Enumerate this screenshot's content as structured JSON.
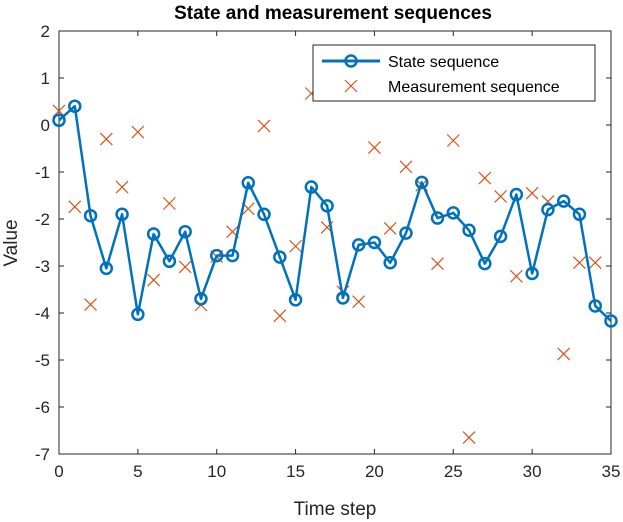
{
  "chart_data": {
    "type": "line",
    "title": "State and measurement sequences",
    "xlabel": "Time step",
    "ylabel": "Value",
    "xlim": [
      0,
      35
    ],
    "ylim": [
      -7,
      2
    ],
    "xticks": [
      "0",
      "5",
      "10",
      "15",
      "20",
      "25",
      "30",
      "35"
    ],
    "yticks": [
      "2",
      "1",
      "0",
      "-1",
      "-2",
      "-3",
      "-4",
      "-5",
      "-6",
      "-7"
    ],
    "grid": false,
    "legend_position": "top-right",
    "series": [
      {
        "name": "State sequence",
        "style": "line-circle",
        "color": "#0072BD",
        "x": [
          0,
          1,
          2,
          3,
          4,
          5,
          6,
          7,
          8,
          9,
          10,
          11,
          12,
          13,
          14,
          15,
          16,
          17,
          18,
          19,
          20,
          21,
          22,
          23,
          24,
          25,
          26,
          27,
          28,
          29,
          30,
          31,
          32,
          33,
          34,
          35
        ],
        "y": [
          0.1,
          0.4,
          -1.93,
          -3.05,
          -1.9,
          -4.03,
          -2.32,
          -2.9,
          -2.27,
          -3.7,
          -2.78,
          -2.78,
          -1.23,
          -1.9,
          -2.81,
          -3.72,
          -1.32,
          -1.72,
          -3.68,
          -2.55,
          -2.5,
          -2.93,
          -2.3,
          -1.22,
          -1.98,
          -1.87,
          -2.24,
          -2.95,
          -2.37,
          -1.48,
          -3.16,
          -1.8,
          -1.62,
          -1.9,
          -3.85,
          -4.17
        ]
      },
      {
        "name": "Measurement sequence",
        "style": "cross",
        "color": "#D95319",
        "x": [
          0,
          1,
          2,
          3,
          4,
          5,
          6,
          7,
          8,
          9,
          10,
          11,
          12,
          13,
          14,
          15,
          16,
          17,
          18,
          19,
          20,
          21,
          22,
          23,
          24,
          25,
          26,
          27,
          28,
          29,
          30,
          31,
          32,
          33,
          34
        ],
        "y": [
          0.3,
          -1.74,
          -3.82,
          -0.3,
          -1.32,
          -0.15,
          -3.3,
          -1.67,
          -3.02,
          -3.83,
          -2.8,
          -2.27,
          -1.78,
          -0.02,
          -4.06,
          -2.58,
          0.67,
          -2.18,
          -3.55,
          -3.76,
          -0.48,
          -2.2,
          -0.89,
          -1.28,
          -2.95,
          -0.33,
          -6.65,
          -1.13,
          -1.52,
          -3.22,
          -1.45,
          -1.63,
          -4.87,
          -2.93,
          -2.93
        ]
      }
    ]
  }
}
